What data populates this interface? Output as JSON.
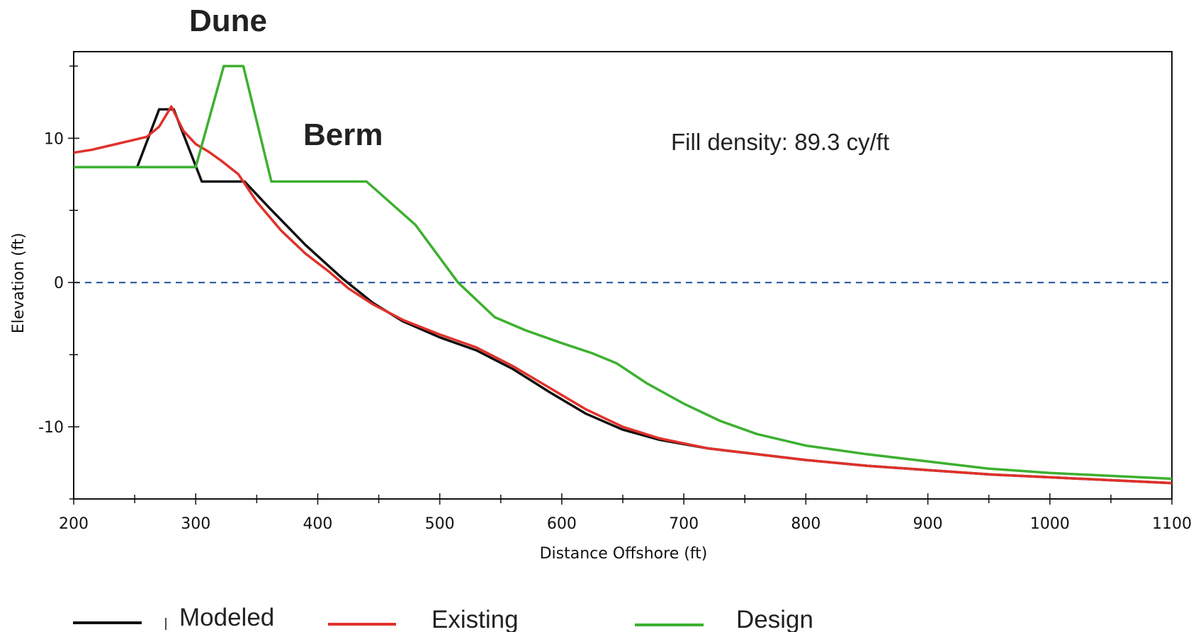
{
  "chart_data": {
    "type": "line",
    "xlabel": "Distance Offshore (ft)",
    "ylabel": "Elevation (ft)",
    "xlim": [
      200,
      1100
    ],
    "ylim": [
      -15,
      16
    ],
    "x_ticks": [
      200,
      300,
      400,
      500,
      600,
      700,
      800,
      900,
      1000,
      1100
    ],
    "y_ticks": [
      10,
      0,
      -10
    ],
    "x_tick_labels": [
      "200",
      "300",
      "400",
      "500",
      "600",
      "700",
      "800",
      "900",
      "1000",
      "1100"
    ],
    "y_tick_labels": [
      "10",
      "0",
      "-10"
    ],
    "reference_line": {
      "y": 0,
      "style": "dashed",
      "color": "#1f4e9c"
    },
    "annotations": {
      "dune": "Dune",
      "berm": "Berm",
      "fill_density": "Fill density:  89.3 cy/ft"
    },
    "series": [
      {
        "name": "Modeled",
        "color": "#111111",
        "points": [
          [
            252,
            8
          ],
          [
            270,
            12
          ],
          [
            282,
            12
          ],
          [
            305,
            7
          ],
          [
            340,
            7
          ],
          [
            360,
            5.2
          ],
          [
            390,
            2.6
          ],
          [
            420,
            0.3
          ],
          [
            445,
            -1.4
          ],
          [
            470,
            -2.7
          ],
          [
            500,
            -3.8
          ],
          [
            530,
            -4.7
          ],
          [
            560,
            -6.0
          ],
          [
            590,
            -7.6
          ],
          [
            620,
            -9.1
          ],
          [
            650,
            -10.2
          ],
          [
            680,
            -10.9
          ],
          [
            720,
            -11.5
          ],
          [
            760,
            -11.9
          ],
          [
            800,
            -12.3
          ],
          [
            850,
            -12.7
          ],
          [
            900,
            -13.0
          ],
          [
            950,
            -13.3
          ],
          [
            1000,
            -13.5
          ],
          [
            1050,
            -13.7
          ],
          [
            1100,
            -13.9
          ]
        ]
      },
      {
        "name": "Existing",
        "color": "#e0312a",
        "points": [
          [
            200,
            9
          ],
          [
            215,
            9.2
          ],
          [
            230,
            9.5
          ],
          [
            245,
            9.8
          ],
          [
            260,
            10.1
          ],
          [
            270,
            10.8
          ],
          [
            280,
            12.2
          ],
          [
            290,
            10.5
          ],
          [
            300,
            9.6
          ],
          [
            310,
            9.1
          ],
          [
            320,
            8.5
          ],
          [
            335,
            7.5
          ],
          [
            350,
            5.6
          ],
          [
            370,
            3.6
          ],
          [
            390,
            2.0
          ],
          [
            410,
            0.7
          ],
          [
            425,
            -0.4
          ],
          [
            445,
            -1.5
          ],
          [
            470,
            -2.6
          ],
          [
            500,
            -3.6
          ],
          [
            530,
            -4.5
          ],
          [
            560,
            -5.8
          ],
          [
            590,
            -7.3
          ],
          [
            620,
            -8.8
          ],
          [
            650,
            -10.0
          ],
          [
            680,
            -10.8
          ],
          [
            720,
            -11.5
          ],
          [
            760,
            -11.9
          ],
          [
            800,
            -12.3
          ],
          [
            850,
            -12.7
          ],
          [
            900,
            -13.0
          ],
          [
            950,
            -13.3
          ],
          [
            1000,
            -13.5
          ],
          [
            1050,
            -13.7
          ],
          [
            1100,
            -13.9
          ]
        ]
      },
      {
        "name": "Design",
        "color": "#3db02f",
        "points": [
          [
            200,
            8
          ],
          [
            300,
            8
          ],
          [
            323,
            15
          ],
          [
            339,
            15
          ],
          [
            362,
            7
          ],
          [
            440,
            7
          ],
          [
            480,
            4
          ],
          [
            515,
            0
          ],
          [
            545,
            -2.4
          ],
          [
            570,
            -3.3
          ],
          [
            600,
            -4.2
          ],
          [
            625,
            -4.9
          ],
          [
            645,
            -5.6
          ],
          [
            670,
            -7.0
          ],
          [
            700,
            -8.4
          ],
          [
            730,
            -9.6
          ],
          [
            760,
            -10.5
          ],
          [
            800,
            -11.3
          ],
          [
            850,
            -11.9
          ],
          [
            900,
            -12.4
          ],
          [
            950,
            -12.9
          ],
          [
            1000,
            -13.2
          ],
          [
            1050,
            -13.4
          ],
          [
            1100,
            -13.6
          ]
        ]
      }
    ],
    "legend": [
      "Modeled",
      "Existing",
      "Design"
    ],
    "grid": false,
    "legend_placement": "bottom"
  }
}
